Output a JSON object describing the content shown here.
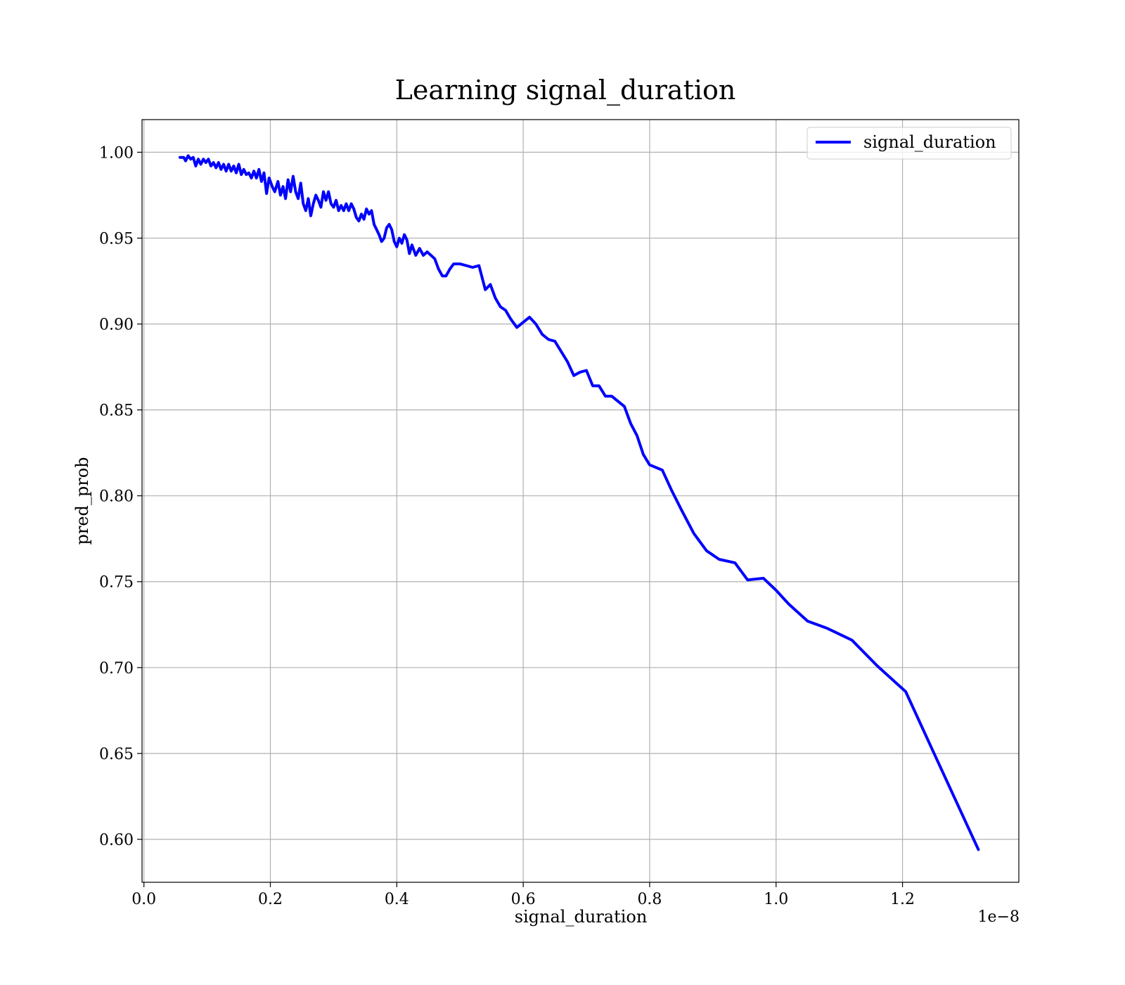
{
  "chart_data": {
    "type": "line",
    "title": "Learning signal_duration",
    "xlabel": "signal_duration",
    "ylabel": "pred_prob",
    "x_offset_label": "1e−8",
    "xlim": [
      -0.003,
      1.384
    ],
    "ylim": [
      0.575,
      1.019
    ],
    "x_ticks": [
      0.0,
      0.2,
      0.4,
      0.6,
      0.8,
      1.0,
      1.2
    ],
    "x_tick_labels": [
      "0.0",
      "0.2",
      "0.4",
      "0.6",
      "0.8",
      "1.0",
      "1.2"
    ],
    "y_ticks": [
      0.6,
      0.65,
      0.7,
      0.75,
      0.8,
      0.85,
      0.9,
      0.95,
      1.0
    ],
    "y_tick_labels": [
      "0.60",
      "0.65",
      "0.70",
      "0.75",
      "0.80",
      "0.85",
      "0.90",
      "0.95",
      "1.00"
    ],
    "grid": true,
    "legend_position": "top-right",
    "series": [
      {
        "name": "signal_duration",
        "color": "#0000ff",
        "points": [
          [
            0.057,
            0.997
          ],
          [
            0.063,
            0.997
          ],
          [
            0.066,
            0.995
          ],
          [
            0.07,
            0.998
          ],
          [
            0.074,
            0.996
          ],
          [
            0.078,
            0.997
          ],
          [
            0.082,
            0.992
          ],
          [
            0.086,
            0.996
          ],
          [
            0.09,
            0.993
          ],
          [
            0.094,
            0.996
          ],
          [
            0.098,
            0.994
          ],
          [
            0.102,
            0.996
          ],
          [
            0.106,
            0.992
          ],
          [
            0.11,
            0.994
          ],
          [
            0.114,
            0.991
          ],
          [
            0.118,
            0.994
          ],
          [
            0.122,
            0.99
          ],
          [
            0.126,
            0.993
          ],
          [
            0.13,
            0.989
          ],
          [
            0.134,
            0.993
          ],
          [
            0.138,
            0.989
          ],
          [
            0.142,
            0.992
          ],
          [
            0.146,
            0.988
          ],
          [
            0.15,
            0.993
          ],
          [
            0.154,
            0.987
          ],
          [
            0.158,
            0.99
          ],
          [
            0.162,
            0.987
          ],
          [
            0.166,
            0.988
          ],
          [
            0.17,
            0.985
          ],
          [
            0.174,
            0.989
          ],
          [
            0.178,
            0.985
          ],
          [
            0.182,
            0.99
          ],
          [
            0.186,
            0.983
          ],
          [
            0.19,
            0.988
          ],
          [
            0.194,
            0.976
          ],
          [
            0.198,
            0.985
          ],
          [
            0.203,
            0.98
          ],
          [
            0.207,
            0.977
          ],
          [
            0.212,
            0.983
          ],
          [
            0.216,
            0.975
          ],
          [
            0.22,
            0.98
          ],
          [
            0.224,
            0.973
          ],
          [
            0.228,
            0.984
          ],
          [
            0.232,
            0.977
          ],
          [
            0.236,
            0.986
          ],
          [
            0.24,
            0.977
          ],
          [
            0.244,
            0.973
          ],
          [
            0.248,
            0.982
          ],
          [
            0.252,
            0.97
          ],
          [
            0.256,
            0.966
          ],
          [
            0.26,
            0.973
          ],
          [
            0.264,
            0.963
          ],
          [
            0.268,
            0.97
          ],
          [
            0.272,
            0.975
          ],
          [
            0.276,
            0.972
          ],
          [
            0.28,
            0.968
          ],
          [
            0.284,
            0.977
          ],
          [
            0.288,
            0.972
          ],
          [
            0.292,
            0.977
          ],
          [
            0.296,
            0.97
          ],
          [
            0.3,
            0.968
          ],
          [
            0.304,
            0.972
          ],
          [
            0.308,
            0.966
          ],
          [
            0.312,
            0.969
          ],
          [
            0.316,
            0.966
          ],
          [
            0.32,
            0.97
          ],
          [
            0.324,
            0.966
          ],
          [
            0.328,
            0.97
          ],
          [
            0.332,
            0.967
          ],
          [
            0.336,
            0.962
          ],
          [
            0.34,
            0.96
          ],
          [
            0.344,
            0.964
          ],
          [
            0.348,
            0.961
          ],
          [
            0.352,
            0.967
          ],
          [
            0.356,
            0.964
          ],
          [
            0.36,
            0.966
          ],
          [
            0.364,
            0.958
          ],
          [
            0.368,
            0.955
          ],
          [
            0.372,
            0.952
          ],
          [
            0.376,
            0.948
          ],
          [
            0.38,
            0.95
          ],
          [
            0.384,
            0.956
          ],
          [
            0.388,
            0.958
          ],
          [
            0.392,
            0.955
          ],
          [
            0.396,
            0.948
          ],
          [
            0.4,
            0.945
          ],
          [
            0.404,
            0.95
          ],
          [
            0.408,
            0.947
          ],
          [
            0.412,
            0.952
          ],
          [
            0.416,
            0.949
          ],
          [
            0.42,
            0.941
          ],
          [
            0.424,
            0.946
          ],
          [
            0.43,
            0.94
          ],
          [
            0.436,
            0.944
          ],
          [
            0.442,
            0.94
          ],
          [
            0.448,
            0.942
          ],
          [
            0.454,
            0.94
          ],
          [
            0.46,
            0.938
          ],
          [
            0.466,
            0.932
          ],
          [
            0.472,
            0.928
          ],
          [
            0.478,
            0.928
          ],
          [
            0.484,
            0.932
          ],
          [
            0.49,
            0.935
          ],
          [
            0.5,
            0.935
          ],
          [
            0.51,
            0.934
          ],
          [
            0.52,
            0.933
          ],
          [
            0.53,
            0.934
          ],
          [
            0.54,
            0.92
          ],
          [
            0.548,
            0.923
          ],
          [
            0.556,
            0.915
          ],
          [
            0.564,
            0.91
          ],
          [
            0.572,
            0.908
          ],
          [
            0.58,
            0.903
          ],
          [
            0.59,
            0.898
          ],
          [
            0.6,
            0.901
          ],
          [
            0.61,
            0.904
          ],
          [
            0.62,
            0.9
          ],
          [
            0.63,
            0.894
          ],
          [
            0.64,
            0.891
          ],
          [
            0.65,
            0.89
          ],
          [
            0.66,
            0.884
          ],
          [
            0.67,
            0.878
          ],
          [
            0.68,
            0.87
          ],
          [
            0.69,
            0.872
          ],
          [
            0.7,
            0.873
          ],
          [
            0.71,
            0.864
          ],
          [
            0.72,
            0.864
          ],
          [
            0.73,
            0.858
          ],
          [
            0.74,
            0.858
          ],
          [
            0.75,
            0.855
          ],
          [
            0.76,
            0.852
          ],
          [
            0.77,
            0.842
          ],
          [
            0.78,
            0.835
          ],
          [
            0.79,
            0.824
          ],
          [
            0.8,
            0.818
          ],
          [
            0.82,
            0.815
          ],
          [
            0.835,
            0.803
          ],
          [
            0.85,
            0.792
          ],
          [
            0.87,
            0.778
          ],
          [
            0.89,
            0.768
          ],
          [
            0.91,
            0.763
          ],
          [
            0.935,
            0.761
          ],
          [
            0.955,
            0.751
          ],
          [
            0.98,
            0.752
          ],
          [
            1.0,
            0.745
          ],
          [
            1.02,
            0.737
          ],
          [
            1.05,
            0.727
          ],
          [
            1.08,
            0.723
          ],
          [
            1.12,
            0.716
          ],
          [
            1.16,
            0.701
          ],
          [
            1.205,
            0.686
          ],
          [
            1.25,
            0.65
          ],
          [
            1.32,
            0.594
          ]
        ]
      }
    ]
  }
}
